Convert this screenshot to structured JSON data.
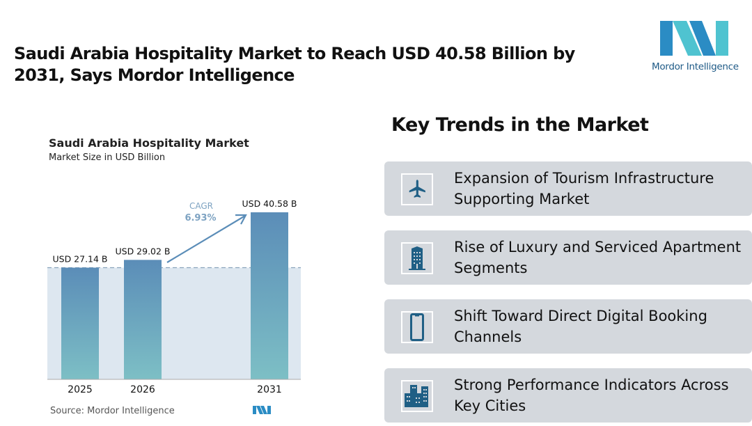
{
  "title": "Saudi Arabia Hospitality Market to Reach USD 40.58 Billion by 2031, Says Mordor Intelligence",
  "logo": {
    "text": "Mordor Intelligence"
  },
  "chart_data": {
    "type": "bar",
    "title": "Saudi Arabia Hospitality Market",
    "subtitle": "Market Size in USD Billion",
    "categories": [
      "2025",
      "2026",
      "2031"
    ],
    "values": [
      27.14,
      29.02,
      40.58
    ],
    "data_labels": [
      "USD 27.14 B",
      "USD 29.02 B",
      "USD 40.58 B"
    ],
    "cagr_label": "CAGR",
    "cagr_value": "6.93%",
    "ylim": [
      0,
      40.58
    ],
    "grid": false,
    "source": "Source: Mordor Intelligence",
    "colors": {
      "bar_top": "#5b8db8",
      "bar_bottom": "#7dbfc5",
      "shade": "#dde7f0",
      "arrow": "#5b8db8"
    }
  },
  "trends": {
    "title": "Key Trends in the Market",
    "items": [
      {
        "label": "Expansion of Tourism Infrastructure Supporting Market",
        "icon": "airplane-icon"
      },
      {
        "label": "Rise of Luxury and Serviced Apartment Segments",
        "icon": "building-icon"
      },
      {
        "label": "Shift Toward Direct Digital Booking Channels",
        "icon": "smartphone-icon"
      },
      {
        "label": "Strong Performance Indicators Across Key Cities",
        "icon": "city-icon"
      }
    ],
    "icon_color": "#1f5f85"
  }
}
